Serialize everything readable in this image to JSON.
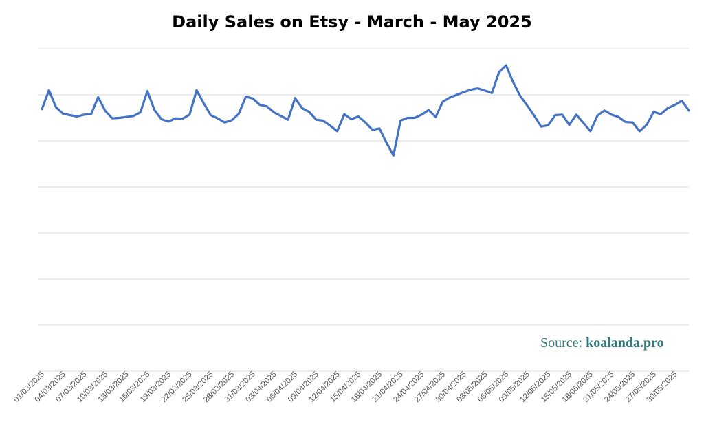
{
  "chart_data": {
    "type": "line",
    "title": "Daily Sales on Etsy - March - May 2025",
    "xlabel": "",
    "ylabel": "",
    "grid": true,
    "legend": "none",
    "line_color": "#4472c4",
    "x_tick_labels": [
      "01/03/2025",
      "04/03/2025",
      "07/03/2025",
      "10/03/2025",
      "13/03/2025",
      "16/03/2025",
      "19/03/2025",
      "22/03/2025",
      "25/03/2025",
      "28/03/2025",
      "31/03/2025",
      "03/04/2025",
      "06/04/2025",
      "09/04/2025",
      "12/04/2025",
      "15/04/2025",
      "18/04/2025",
      "21/04/2025",
      "24/04/2025",
      "27/04/2025",
      "30/04/2025",
      "03/05/2025",
      "06/05/2025",
      "09/05/2025",
      "12/05/2025",
      "15/05/2025",
      "18/05/2025",
      "21/05/2025",
      "24/05/2025",
      "27/05/2025",
      "30/05/2025"
    ],
    "y_gridlines": 7,
    "ylim": [
      0,
      7
    ],
    "series": [
      {
        "values": [
          5.69,
          6.1,
          5.73,
          5.59,
          5.56,
          5.53,
          5.57,
          5.58,
          5.95,
          5.65,
          5.49,
          5.5,
          5.52,
          5.54,
          5.62,
          6.08,
          5.67,
          5.47,
          5.42,
          5.49,
          5.48,
          5.57,
          6.1,
          5.82,
          5.56,
          5.49,
          5.4,
          5.45,
          5.59,
          5.96,
          5.92,
          5.78,
          5.75,
          5.62,
          5.54,
          5.46,
          5.93,
          5.71,
          5.63,
          5.46,
          5.44,
          5.33,
          5.21,
          5.58,
          5.47,
          5.53,
          5.4,
          5.24,
          5.27,
          4.96,
          4.68,
          5.44,
          5.5,
          5.5,
          5.57,
          5.67,
          5.52,
          5.85,
          5.94,
          6.0,
          6.06,
          6.11,
          6.14,
          6.09,
          6.04,
          6.49,
          6.64,
          6.28,
          5.98,
          5.77,
          5.55,
          5.31,
          5.34,
          5.56,
          5.57,
          5.35,
          5.57,
          5.39,
          5.21,
          5.55,
          5.66,
          5.57,
          5.52,
          5.41,
          5.4,
          5.21,
          5.35,
          5.63,
          5.58,
          5.71,
          5.78,
          5.87,
          5.66
        ]
      }
    ],
    "source_prefix": "Source: ",
    "source_site": "koalanda.pro"
  }
}
